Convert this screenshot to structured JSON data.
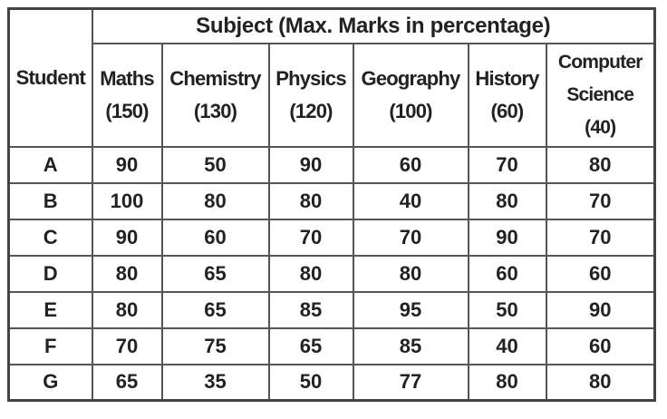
{
  "table": {
    "group_header": "Subject (Max. Marks in percentage)",
    "student_header": "Student",
    "columns": [
      {
        "name": "Maths",
        "max": "(150)"
      },
      {
        "name": "Chemistry",
        "max": "(130)"
      },
      {
        "name": "Physics",
        "max": "(120)"
      },
      {
        "name": "Geography",
        "max": "(100)"
      },
      {
        "name": "History",
        "max": "(60)"
      },
      {
        "name": "Computer Science",
        "name_line1": "Computer",
        "name_line2": "Science",
        "max": "(40)"
      }
    ],
    "rows": [
      {
        "student": "A",
        "values": [
          "90",
          "50",
          "90",
          "60",
          "70",
          "80"
        ]
      },
      {
        "student": "B",
        "values": [
          "100",
          "80",
          "80",
          "40",
          "80",
          "70"
        ]
      },
      {
        "student": "C",
        "values": [
          "90",
          "60",
          "70",
          "70",
          "90",
          "70"
        ]
      },
      {
        "student": "D",
        "values": [
          "80",
          "65",
          "80",
          "80",
          "60",
          "60"
        ]
      },
      {
        "student": "E",
        "values": [
          "80",
          "65",
          "85",
          "95",
          "50",
          "90"
        ]
      },
      {
        "student": "F",
        "values": [
          "70",
          "75",
          "65",
          "85",
          "40",
          "60"
        ]
      },
      {
        "student": "G",
        "values": [
          "65",
          "35",
          "50",
          "77",
          "80",
          "80"
        ]
      }
    ]
  }
}
